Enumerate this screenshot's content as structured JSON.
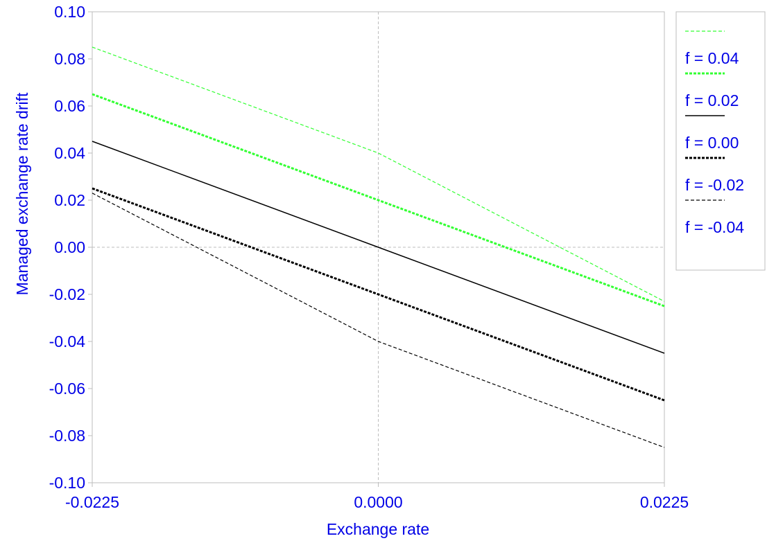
{
  "chart_data": {
    "type": "line",
    "title": "",
    "xlabel": "Exchange rate",
    "ylabel": "Managed exchange rate drift",
    "xlim": [
      -0.0225,
      0.0225
    ],
    "ylim": [
      -0.1,
      0.1
    ],
    "x_ticks": [
      {
        "value": -0.0225,
        "label": "-0.0225"
      },
      {
        "value": 0.0,
        "label": "0.0000"
      },
      {
        "value": 0.0225,
        "label": "0.0225"
      }
    ],
    "y_ticks": [
      {
        "value": 0.1,
        "label": "0.10"
      },
      {
        "value": 0.08,
        "label": "0.08"
      },
      {
        "value": 0.06,
        "label": "0.06"
      },
      {
        "value": 0.04,
        "label": "0.04"
      },
      {
        "value": 0.02,
        "label": "0.02"
      },
      {
        "value": 0.0,
        "label": "0.00"
      },
      {
        "value": -0.02,
        "label": "-0.02"
      },
      {
        "value": -0.04,
        "label": "-0.04"
      },
      {
        "value": -0.06,
        "label": "-0.06"
      },
      {
        "value": -0.08,
        "label": "-0.08"
      },
      {
        "value": -0.1,
        "label": "-0.10"
      }
    ],
    "reference_lines": {
      "x": 0.0,
      "y": 0.0,
      "style": "dotted",
      "color": "#bdbdbd"
    },
    "legend_position": "right",
    "x": [
      -0.0225,
      0.0,
      0.0225
    ],
    "series": [
      {
        "name": "f = 0.04",
        "values": [
          0.085,
          0.04,
          -0.023
        ],
        "color": "#33ff33",
        "style": "thin-dashed"
      },
      {
        "name": "f = 0.02",
        "values": [
          0.065,
          0.02,
          -0.025
        ],
        "color": "#33ff33",
        "style": "thick-dotted"
      },
      {
        "name": "f = 0.00",
        "values": [
          0.045,
          0.0,
          -0.045
        ],
        "color": "#000000",
        "style": "solid"
      },
      {
        "name": "f = -0.02",
        "values": [
          0.025,
          -0.02,
          -0.065
        ],
        "color": "#000000",
        "style": "thick-dotted"
      },
      {
        "name": "f = -0.04",
        "values": [
          0.023,
          -0.04,
          -0.085
        ],
        "color": "#000000",
        "style": "thin-dashed"
      }
    ]
  }
}
